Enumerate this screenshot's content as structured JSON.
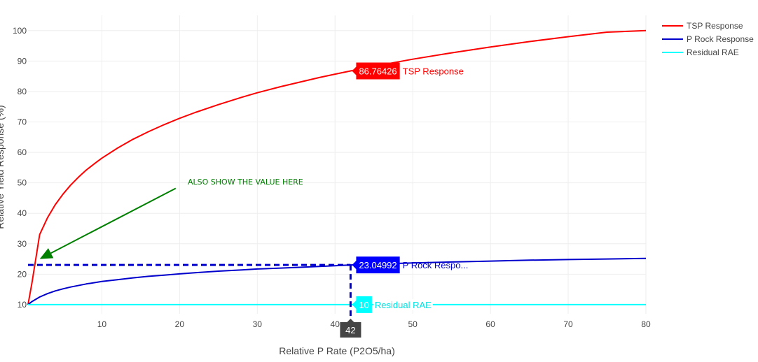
{
  "chart_data": {
    "type": "line",
    "title": "",
    "xlabel": "Relative P Rate (P2O5/ha)",
    "ylabel": "Relative Yield Response (%)",
    "xlim": [
      0.5,
      80
    ],
    "ylim": [
      7,
      105
    ],
    "x_ticks": [
      10,
      20,
      30,
      40,
      50,
      60,
      70,
      80
    ],
    "y_ticks": [
      10,
      20,
      30,
      40,
      50,
      60,
      70,
      80,
      90,
      100
    ],
    "grid": true,
    "legend_position": "top-right",
    "series": [
      {
        "name": "TSP Response",
        "color": "#ff0000",
        "x": [
          0.5,
          1,
          2,
          3,
          4,
          5,
          6,
          7,
          8,
          9,
          10,
          12,
          14,
          16,
          18,
          20,
          22,
          25,
          28,
          30,
          33,
          36,
          38,
          40,
          42,
          45,
          50,
          55,
          60,
          65,
          70,
          75,
          80
        ],
        "y": [
          10,
          17,
          33,
          38.5,
          42.8,
          46.3,
          49.3,
          51.9,
          54.2,
          56.2,
          58.1,
          61.4,
          64.3,
          66.8,
          69.1,
          71.2,
          73.1,
          75.7,
          78.1,
          79.6,
          81.6,
          83.4,
          84.6,
          85.7,
          86.76,
          88.3,
          90.6,
          92.7,
          94.6,
          96.4,
          98.0,
          99.5,
          100
        ]
      },
      {
        "name": "P Rock Response",
        "color": "#0000cc",
        "x": [
          0.5,
          1,
          2,
          3,
          4,
          5,
          6,
          8,
          10,
          12,
          14,
          16,
          18,
          20,
          22,
          25,
          28,
          30,
          33,
          36,
          38,
          40,
          42,
          45,
          50,
          55,
          60,
          65,
          70,
          75,
          80
        ],
        "y": [
          10,
          11,
          12.5,
          13.6,
          14.5,
          15.2,
          15.8,
          16.8,
          17.6,
          18.2,
          18.8,
          19.3,
          19.7,
          20.1,
          20.5,
          21.0,
          21.4,
          21.7,
          22.0,
          22.3,
          22.55,
          22.8,
          23.05,
          23.3,
          23.7,
          24.0,
          24.3,
          24.6,
          24.8,
          25.0,
          25.2
        ]
      },
      {
        "name": "Residual RAE",
        "color": "#00ffff",
        "x": [
          0.5,
          80
        ],
        "y": [
          10,
          10
        ]
      }
    ],
    "hover": {
      "x": 42,
      "x_label": "42",
      "labels": [
        {
          "series": "TSP Response",
          "value": "86.76426",
          "name": "TSP Response",
          "y": 86.76426,
          "bg": "#ff0000",
          "name_color": "#ff0000"
        },
        {
          "series": "P Rock Response",
          "value": "23.04992",
          "name": "P Rock Respo...",
          "y": 23.04992,
          "bg": "#0000ff",
          "name_color": "#0000cc"
        },
        {
          "series": "Residual RAE",
          "value": "10",
          "name": "Residual RAE",
          "y": 10,
          "bg": "#00ffff",
          "name_color": "#00e0e0"
        }
      ],
      "crosshair_y": 23.04992,
      "crosshair_color": "#0000cc"
    },
    "annotation": {
      "text": "ALSO SHOW THE VALUE HERE",
      "color": "#008000",
      "arrow_from": [
        19.5,
        48.2
      ],
      "arrow_to": [
        2.0,
        25.0
      ]
    }
  }
}
